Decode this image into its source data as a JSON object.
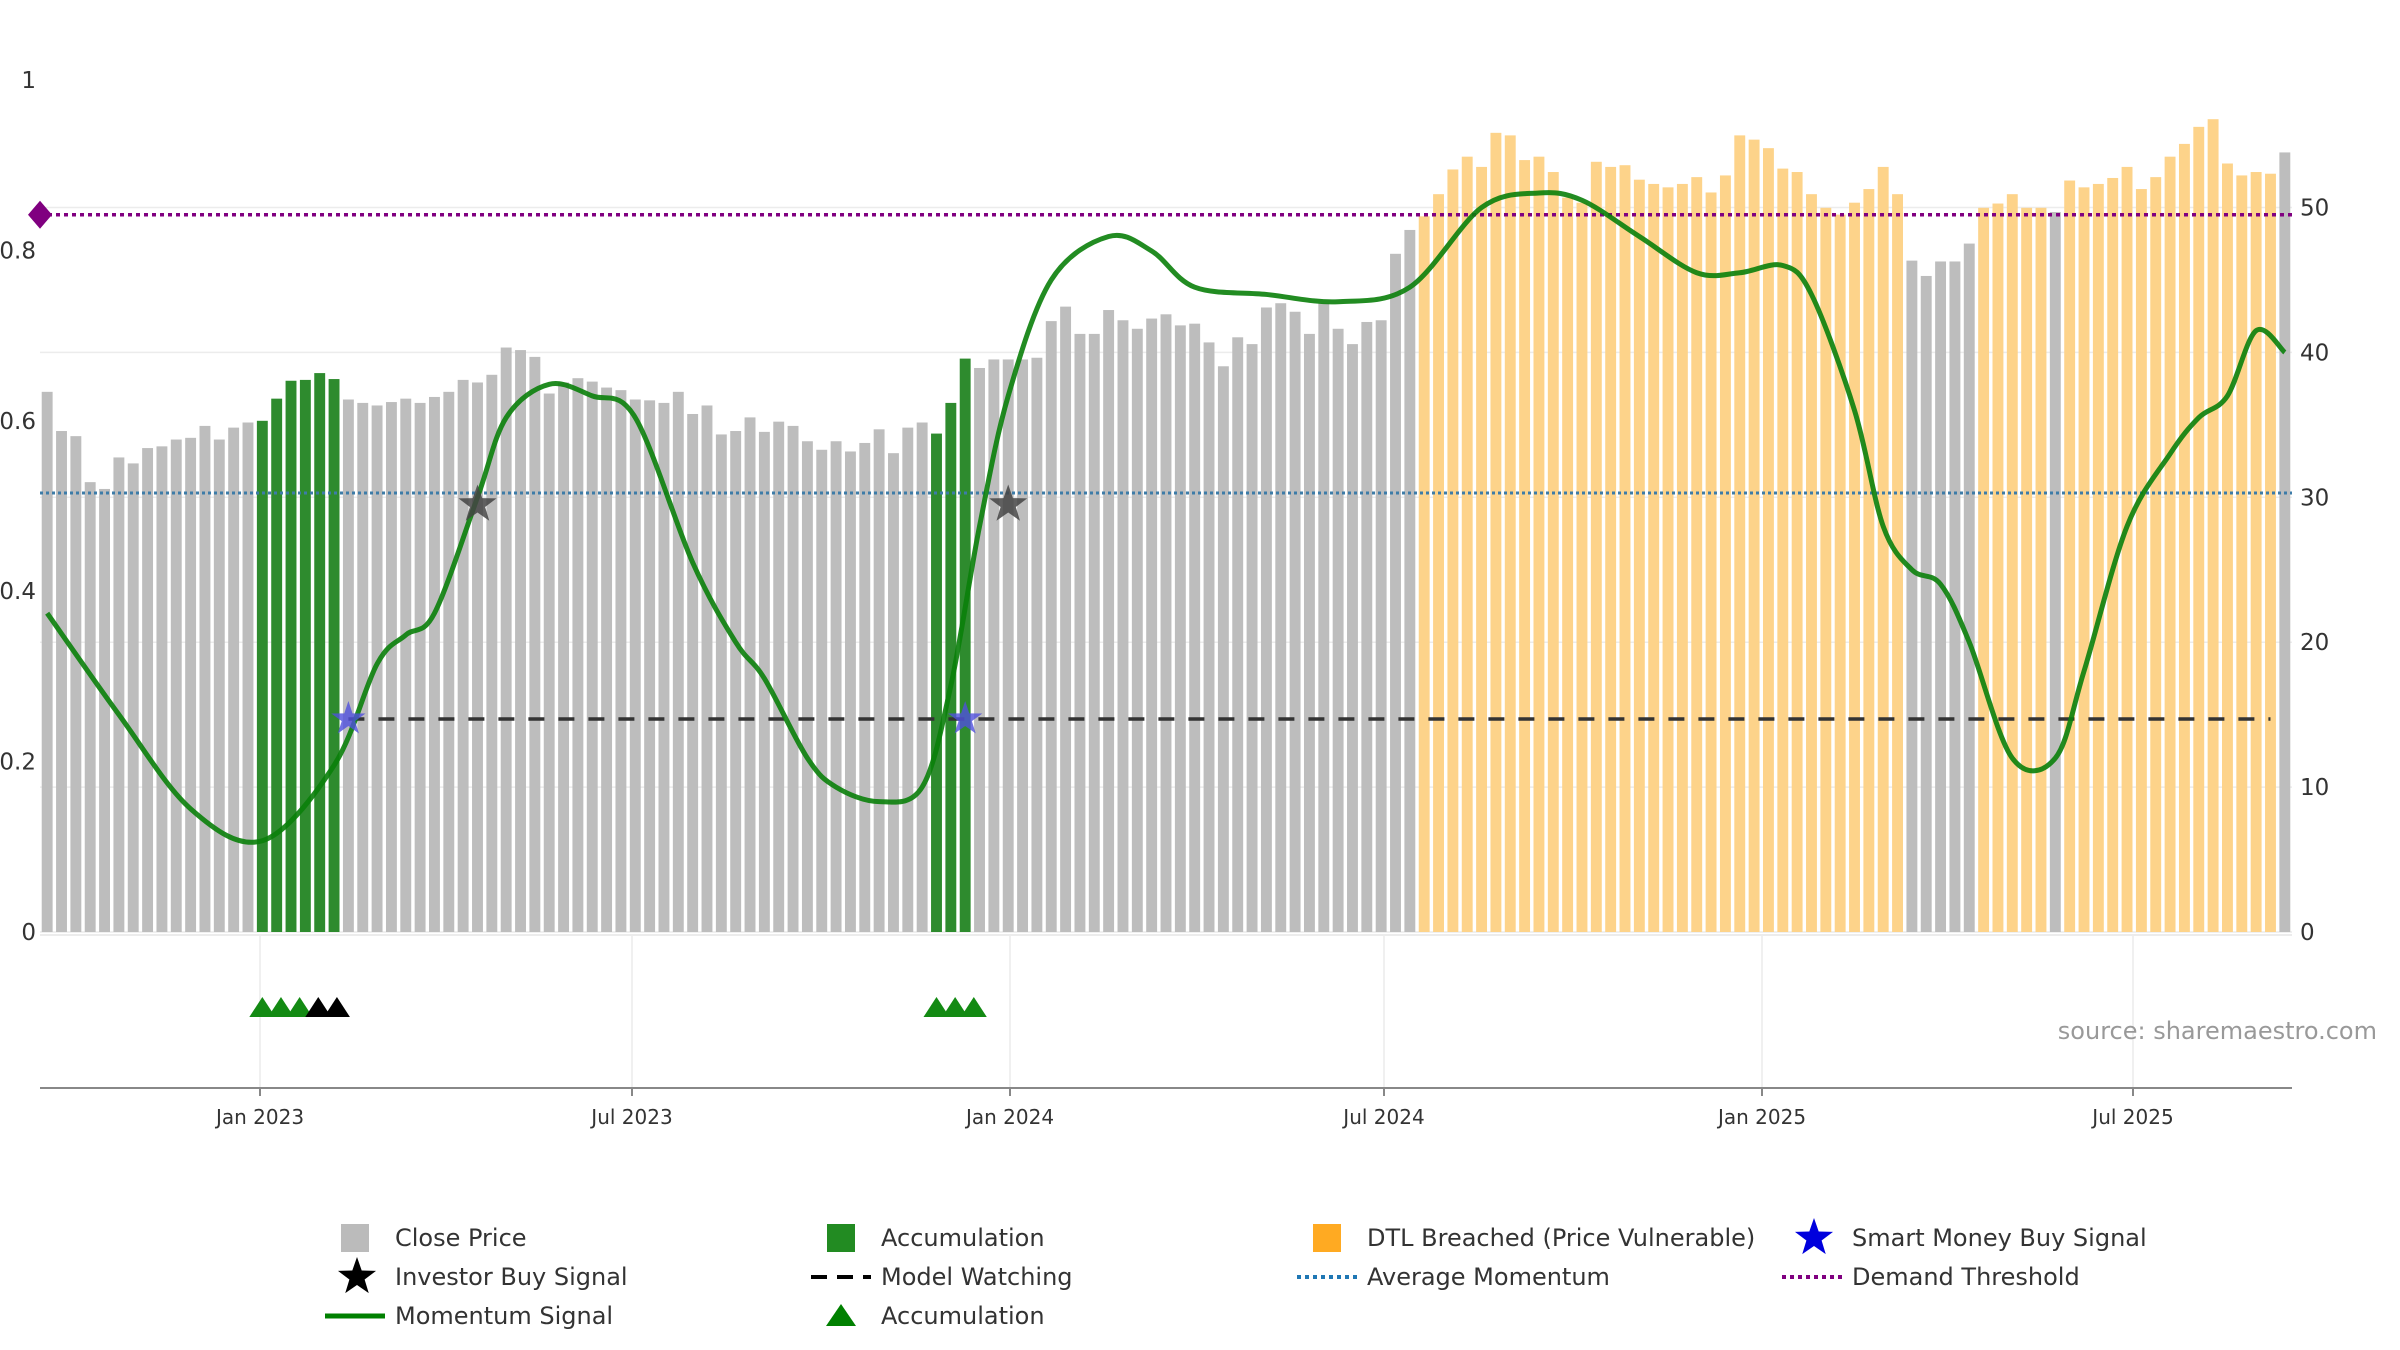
{
  "chart_data": {
    "type": "bar",
    "title": "",
    "source_note": "source: sharemaestro.com",
    "x_ticks": [
      "Jan 2023",
      "Jul 2023",
      "Jan 2024",
      "Jul 2024",
      "Jan 2025",
      "Jul 2025"
    ],
    "y_left": {
      "ticks": [
        "0",
        "0.2",
        "0.4",
        "0.6",
        "0.8",
        "1"
      ],
      "ylim": [
        0,
        1
      ]
    },
    "y_right": {
      "ticks": [
        "0",
        "10",
        "20",
        "30",
        "40",
        "50"
      ],
      "ylim": [
        0,
        58.8
      ]
    },
    "bar_heights": [
      0.634,
      0.588,
      0.582,
      0.528,
      0.52,
      0.557,
      0.55,
      0.568,
      0.57,
      0.578,
      0.58,
      0.594,
      0.578,
      0.592,
      0.598,
      0.6,
      0.626,
      0.647,
      0.648,
      0.656,
      0.649,
      0.625,
      0.621,
      0.618,
      0.622,
      0.626,
      0.621,
      0.628,
      0.634,
      0.648,
      0.645,
      0.654,
      0.686,
      0.683,
      0.675,
      0.632,
      0.645,
      0.65,
      0.646,
      0.639,
      0.636,
      0.625,
      0.624,
      0.621,
      0.634,
      0.608,
      0.618,
      0.584,
      0.588,
      0.604,
      0.587,
      0.599,
      0.594,
      0.576,
      0.566,
      0.576,
      0.564,
      0.574,
      0.59,
      0.562,
      0.592,
      0.598,
      0.585,
      0.621,
      0.673,
      0.662,
      0.672,
      0.672,
      0.672,
      0.674,
      0.717,
      0.734,
      0.702,
      0.702,
      0.73,
      0.718,
      0.708,
      0.72,
      0.725,
      0.712,
      0.714,
      0.692,
      0.664,
      0.698,
      0.69,
      0.733,
      0.738,
      0.728,
      0.702,
      0.738,
      0.708,
      0.69,
      0.716,
      0.718,
      0.796,
      0.824,
      0.84,
      0.866,
      0.895,
      0.91,
      0.898,
      0.938,
      0.935,
      0.906,
      0.91,
      0.892,
      0.862,
      0.856,
      0.904,
      0.898,
      0.9,
      0.883,
      0.878,
      0.874,
      0.878,
      0.886,
      0.868,
      0.888,
      0.935,
      0.93,
      0.92,
      0.896,
      0.892,
      0.866,
      0.85,
      0.842,
      0.856,
      0.872,
      0.898,
      0.866,
      0.788,
      0.77,
      0.787,
      0.787,
      0.808,
      0.85,
      0.855,
      0.866,
      0.85,
      0.85,
      0.845,
      0.882,
      0.874,
      0.878,
      0.885,
      0.898,
      0.872,
      0.886,
      0.91,
      0.925,
      0.945,
      0.954,
      0.902,
      0.888,
      0.892,
      0.89,
      0.915
    ],
    "bar_categories": [
      {
        "start": 0,
        "end": 14,
        "category": "Close Price"
      },
      {
        "start": 15,
        "end": 20,
        "category": "Accumulation"
      },
      {
        "start": 21,
        "end": 61,
        "category": "Close Price"
      },
      {
        "start": 62,
        "end": 64,
        "category": "Accumulation"
      },
      {
        "start": 65,
        "end": 95,
        "category": "Close Price"
      },
      {
        "start": 96,
        "end": 129,
        "category": "DTL Breached (Price Vulnerable)"
      },
      {
        "start": 130,
        "end": 134,
        "category": "Close Price"
      },
      {
        "start": 135,
        "end": 139,
        "category": "DTL Breached (Price Vulnerable)"
      },
      {
        "start": 140,
        "end": 140,
        "category": "Close Price"
      },
      {
        "start": 141,
        "end": 155,
        "category": "DTL Breached (Price Vulnerable)"
      }
    ],
    "momentum_series": {
      "name": "Momentum Signal",
      "axis": "right",
      "points": [
        [
          0,
          22
        ],
        [
          5,
          15
        ],
        [
          10,
          8.5
        ],
        [
          15,
          6.3
        ],
        [
          20,
          11.5
        ],
        [
          23,
          18.5
        ],
        [
          25,
          20.5
        ],
        [
          27,
          22
        ],
        [
          30,
          30
        ],
        [
          32,
          35.5
        ],
        [
          35,
          37.8
        ],
        [
          38,
          37
        ],
        [
          41,
          35.5
        ],
        [
          45,
          25.5
        ],
        [
          48,
          20
        ],
        [
          50,
          17.5
        ],
        [
          53,
          12
        ],
        [
          55,
          10
        ],
        [
          58,
          9
        ],
        [
          61,
          10
        ],
        [
          63,
          17
        ],
        [
          65,
          28
        ],
        [
          67,
          37
        ],
        [
          70,
          45
        ],
        [
          74,
          48
        ],
        [
          77,
          47
        ],
        [
          80,
          44.5
        ],
        [
          85,
          44
        ],
        [
          90,
          43.5
        ],
        [
          95,
          44.5
        ],
        [
          100,
          50
        ],
        [
          104,
          51
        ],
        [
          107,
          50.5
        ],
        [
          111,
          48
        ],
        [
          115,
          45.5
        ],
        [
          118,
          45.5
        ],
        [
          121,
          46
        ],
        [
          123,
          44
        ],
        [
          126,
          36
        ],
        [
          128,
          28
        ],
        [
          130,
          25
        ],
        [
          132,
          24
        ],
        [
          134,
          20
        ],
        [
          137,
          12
        ],
        [
          140,
          12
        ],
        [
          142,
          18
        ],
        [
          145,
          28
        ],
        [
          148,
          33
        ],
        [
          150,
          35.5
        ],
        [
          152,
          37
        ],
        [
          154,
          41.5
        ],
        [
          156,
          40
        ]
      ]
    },
    "average_momentum": {
      "name": "Average Momentum",
      "value": 30.3,
      "axis": "right"
    },
    "demand_threshold": {
      "name": "Demand Threshold",
      "value": 49.5,
      "axis": "right"
    },
    "model_watching": {
      "name": "Model Watching",
      "y": 14.7,
      "axis": "right",
      "from_index": 21,
      "to_index": 155
    },
    "investor_buy_signals": [
      {
        "index": 30,
        "y": 29.5
      },
      {
        "index": 67,
        "y": 29.5
      }
    ],
    "smart_money_buy_signals": [
      {
        "index": 21,
        "y": 14.7
      },
      {
        "index": 64,
        "y": 14.7
      }
    ],
    "accumulation_markers": [
      {
        "index": 15,
        "color": "green"
      },
      {
        "index": 16.3,
        "color": "green"
      },
      {
        "index": 17.6,
        "color": "green"
      },
      {
        "index": 18.9,
        "color": "black"
      },
      {
        "index": 20.2,
        "color": "black"
      },
      {
        "index": 62,
        "color": "green"
      },
      {
        "index": 63.3,
        "color": "green"
      },
      {
        "index": 64.6,
        "color": "green"
      }
    ],
    "legend": {
      "placement": "bottom",
      "items": [
        {
          "label": "Close Price",
          "symbol": "square",
          "color": "#bbbbbb"
        },
        {
          "label": "Accumulation",
          "symbol": "square",
          "color": "#228b22"
        },
        {
          "label": "DTL Breached (Price Vulnerable)",
          "symbol": "square",
          "color": "#ffaa22"
        },
        {
          "label": "Smart Money Buy Signal",
          "symbol": "star",
          "color": "#0000dd"
        },
        {
          "label": "Investor Buy Signal",
          "symbol": "star",
          "color": "#000000"
        },
        {
          "label": "Model Watching",
          "symbol": "dash",
          "color": "#000000"
        },
        {
          "label": "Average Momentum",
          "symbol": "dot",
          "color": "#1f77b4"
        },
        {
          "label": "Demand Threshold",
          "symbol": "dot",
          "color": "#800080"
        },
        {
          "label": "Momentum Signal",
          "symbol": "line",
          "color": "#008000"
        },
        {
          "label": "Accumulation",
          "symbol": "triangle",
          "color": "#008000"
        }
      ]
    },
    "colors": {
      "close_price": "#bdbdbd",
      "accumulation": "#2e8b2e",
      "dtl": "#fdd38a",
      "momentum": "#0a800a",
      "average_momentum": "#3d7ca8",
      "demand_threshold": "#800080",
      "model_watching": "#333333",
      "investor_star": "#444444",
      "smart_star": "#5050dd",
      "axis": "#888888",
      "grid": "#ececec",
      "tick_text": "#333333",
      "source_text": "#999999"
    }
  }
}
